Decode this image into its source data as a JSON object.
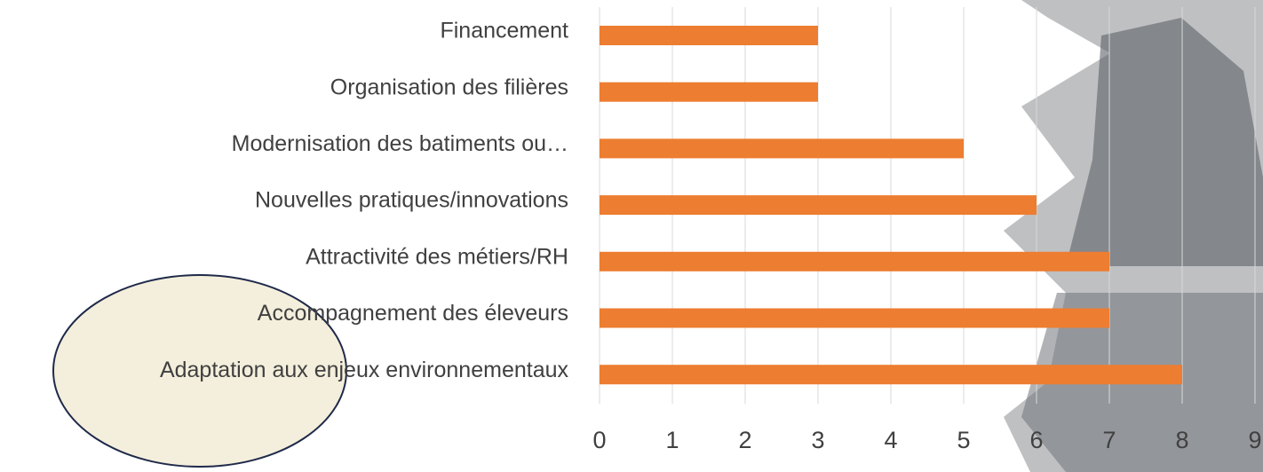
{
  "chart_data": {
    "type": "bar",
    "orientation": "horizontal",
    "categories": [
      "Financement",
      "Organisation des filières",
      "Modernisation des batiments ou…",
      "Nouvelles pratiques/innovations",
      "Attractivité des métiers/RH",
      "Accompagnement des éleveurs",
      "Adaptation aux enjeux environnementaux"
    ],
    "values": [
      3,
      3,
      5,
      6,
      7,
      7,
      8
    ],
    "color": "#ed7d31",
    "xlim": [
      0,
      9
    ],
    "xticks": [
      0,
      1,
      2,
      3,
      4,
      5,
      6,
      7,
      8,
      9
    ],
    "grid": true
  }
}
